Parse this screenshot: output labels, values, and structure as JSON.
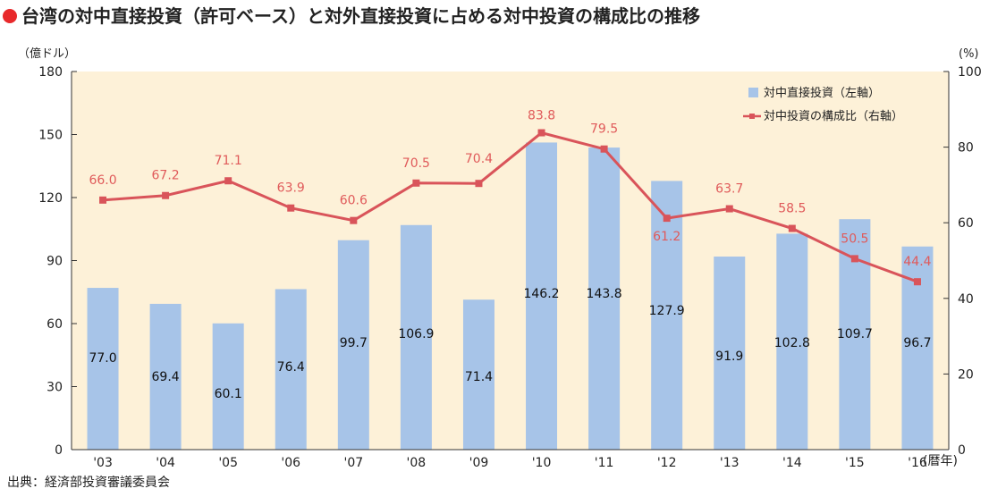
{
  "chart_data": {
    "title": "台湾の対中直接投資（許可ベース）と対外直接投資に占める対中投資の構成比の推移",
    "type": "bar+line",
    "left_unit": "（億ドル）",
    "right_unit": "(%)",
    "x_unit": "(暦年)",
    "categories": [
      "'03",
      "'04",
      "'05",
      "'06",
      "'07",
      "'08",
      "'09",
      "'10",
      "'11",
      "'12",
      "'13",
      "'14",
      "'15",
      "'16"
    ],
    "ylim_left": [
      0,
      180
    ],
    "yticks_left": [
      0,
      30,
      60,
      90,
      120,
      150,
      180
    ],
    "ylim_right": [
      0,
      100
    ],
    "yticks_right": [
      0,
      20,
      40,
      60,
      80,
      100
    ],
    "series": [
      {
        "name": "対中直接投資（左軸）",
        "type": "bar",
        "axis": "left",
        "color": "#a7c4e8",
        "values": [
          77.0,
          69.4,
          60.1,
          76.4,
          99.7,
          106.9,
          71.4,
          146.2,
          143.8,
          127.9,
          91.9,
          102.8,
          109.7,
          96.7
        ],
        "labels": [
          "77.0",
          "69.4",
          "60.1",
          "76.4",
          "99.7",
          "106.9",
          "71.4",
          "146.2",
          "143.8",
          "127.9",
          "91.9",
          "102.8",
          "109.7",
          "96.7"
        ]
      },
      {
        "name": "対中投資の構成比（右軸）",
        "type": "line",
        "axis": "right",
        "color": "#d9545a",
        "values": [
          66.0,
          67.2,
          71.1,
          63.9,
          60.6,
          70.5,
          70.4,
          83.8,
          79.5,
          61.2,
          63.7,
          58.5,
          50.5,
          44.4
        ],
        "labels": [
          "66.0",
          "67.2",
          "71.1",
          "63.9",
          "60.6",
          "70.5",
          "70.4",
          "83.8",
          "79.5",
          "61.2",
          "63.7",
          "58.5",
          "50.5",
          "44.4"
        ]
      }
    ],
    "plot_background": "#fdf1d8",
    "legend_position": "top-right",
    "grid": false
  },
  "source": "出典：経済部投資審議委員会"
}
